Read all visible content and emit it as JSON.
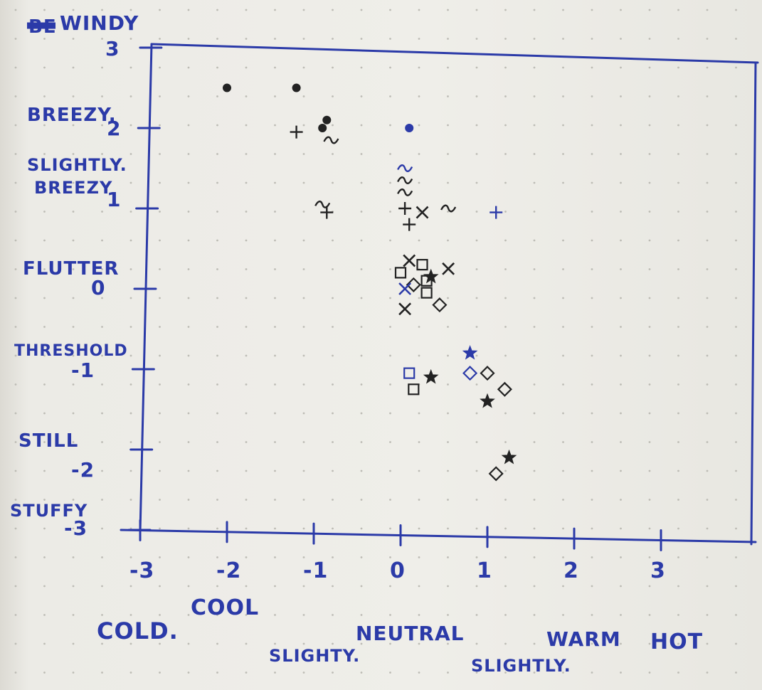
{
  "chart_data": {
    "type": "scatter",
    "title": "",
    "xlabel": "",
    "ylabel": "",
    "xlim": [
      -3,
      3
    ],
    "ylim": [
      -3,
      3
    ],
    "grid": "dotted",
    "x_ticks": [
      {
        "value": -3,
        "label": "-3"
      },
      {
        "value": -2,
        "label": "-2"
      },
      {
        "value": -1,
        "label": "-1"
      },
      {
        "value": 0,
        "label": "0"
      },
      {
        "value": 1,
        "label": "1"
      },
      {
        "value": 2,
        "label": "2"
      },
      {
        "value": 3,
        "label": "3"
      }
    ],
    "y_ticks": [
      {
        "value": 3,
        "label": "3",
        "category": "WINDY",
        "struck_text": "BE"
      },
      {
        "value": 2,
        "label": "2",
        "category": "BREEZY."
      },
      {
        "value": 1,
        "label": "1",
        "category": "SLIGHTLY. BREEZY"
      },
      {
        "value": 0,
        "label": "0",
        "category": "FLUTTER"
      },
      {
        "value": -1,
        "label": "-1",
        "category": "THRESHOLD"
      },
      {
        "value": -2,
        "label": "-2",
        "category": "STILL"
      },
      {
        "value": -3,
        "label": "-3",
        "category": "STUFFY"
      }
    ],
    "x_categories": [
      {
        "value": -3,
        "label": "COLD."
      },
      {
        "value": -2,
        "label": "COOL"
      },
      {
        "value": -1,
        "label": "SLIGHTY."
      },
      {
        "value": 0,
        "label": "NEUTRAL"
      },
      {
        "value": 1,
        "label": "SLIGHTLY."
      },
      {
        "value": 2,
        "label": "WARM"
      },
      {
        "value": 3,
        "label": "HOT"
      }
    ],
    "points": [
      {
        "x": -2.0,
        "y": 2.5,
        "marker": "dot",
        "color": "#222222"
      },
      {
        "x": -1.2,
        "y": 2.5,
        "marker": "dot",
        "color": "#222222"
      },
      {
        "x": -0.9,
        "y": 2.0,
        "marker": "dot",
        "color": "#222222"
      },
      {
        "x": -0.85,
        "y": 2.1,
        "marker": "dot",
        "color": "#222222"
      },
      {
        "x": -1.2,
        "y": 1.95,
        "marker": "plus",
        "color": "#222222"
      },
      {
        "x": -0.8,
        "y": 1.85,
        "marker": "tilde",
        "color": "#222222"
      },
      {
        "x": 0.1,
        "y": 2.0,
        "marker": "dot",
        "color": "#2b3aa8"
      },
      {
        "x": 0.05,
        "y": 1.5,
        "marker": "tilde",
        "color": "#2b3aa8"
      },
      {
        "x": 0.05,
        "y": 1.35,
        "marker": "tilde",
        "color": "#222222"
      },
      {
        "x": 0.05,
        "y": 1.2,
        "marker": "tilde",
        "color": "#222222"
      },
      {
        "x": -0.9,
        "y": 1.05,
        "marker": "tilde",
        "color": "#222222"
      },
      {
        "x": -0.85,
        "y": 0.95,
        "marker": "plus",
        "color": "#222222"
      },
      {
        "x": 0.05,
        "y": 1.0,
        "marker": "plus",
        "color": "#222222"
      },
      {
        "x": 0.1,
        "y": 0.8,
        "marker": "plus",
        "color": "#222222"
      },
      {
        "x": 0.25,
        "y": 0.95,
        "marker": "cross",
        "color": "#222222"
      },
      {
        "x": 0.55,
        "y": 1.0,
        "marker": "tilde",
        "color": "#222222"
      },
      {
        "x": 1.1,
        "y": 0.95,
        "marker": "plus",
        "color": "#2b3aa8"
      },
      {
        "x": 0.1,
        "y": 0.35,
        "marker": "cross",
        "color": "#222222"
      },
      {
        "x": 0.25,
        "y": 0.3,
        "marker": "square",
        "color": "#222222"
      },
      {
        "x": 0.55,
        "y": 0.25,
        "marker": "cross",
        "color": "#222222"
      },
      {
        "x": 0.0,
        "y": 0.2,
        "marker": "square",
        "color": "#222222"
      },
      {
        "x": 0.35,
        "y": 0.15,
        "marker": "star",
        "color": "#222222"
      },
      {
        "x": 0.3,
        "y": 0.1,
        "marker": "square",
        "color": "#222222"
      },
      {
        "x": 0.15,
        "y": 0.05,
        "marker": "diamond",
        "color": "#222222"
      },
      {
        "x": 0.05,
        "y": 0.0,
        "marker": "cross",
        "color": "#2b3aa8"
      },
      {
        "x": 0.3,
        "y": -0.05,
        "marker": "square",
        "color": "#222222"
      },
      {
        "x": 0.45,
        "y": -0.2,
        "marker": "diamond",
        "color": "#222222"
      },
      {
        "x": 0.05,
        "y": -0.25,
        "marker": "cross",
        "color": "#222222"
      },
      {
        "x": 0.8,
        "y": -0.8,
        "marker": "star",
        "color": "#2b3aa8"
      },
      {
        "x": 0.8,
        "y": -1.05,
        "marker": "diamond",
        "color": "#2b3aa8"
      },
      {
        "x": 0.1,
        "y": -1.05,
        "marker": "square",
        "color": "#2b3aa8"
      },
      {
        "x": 0.35,
        "y": -1.1,
        "marker": "star",
        "color": "#222222"
      },
      {
        "x": 0.15,
        "y": -1.25,
        "marker": "square",
        "color": "#222222"
      },
      {
        "x": 1.0,
        "y": -1.05,
        "marker": "diamond",
        "color": "#222222"
      },
      {
        "x": 1.2,
        "y": -1.25,
        "marker": "diamond",
        "color": "#222222"
      },
      {
        "x": 1.0,
        "y": -1.4,
        "marker": "star",
        "color": "#222222"
      },
      {
        "x": 1.25,
        "y": -2.1,
        "marker": "star",
        "color": "#222222"
      },
      {
        "x": 1.1,
        "y": -2.3,
        "marker": "diamond",
        "color": "#222222"
      }
    ]
  }
}
